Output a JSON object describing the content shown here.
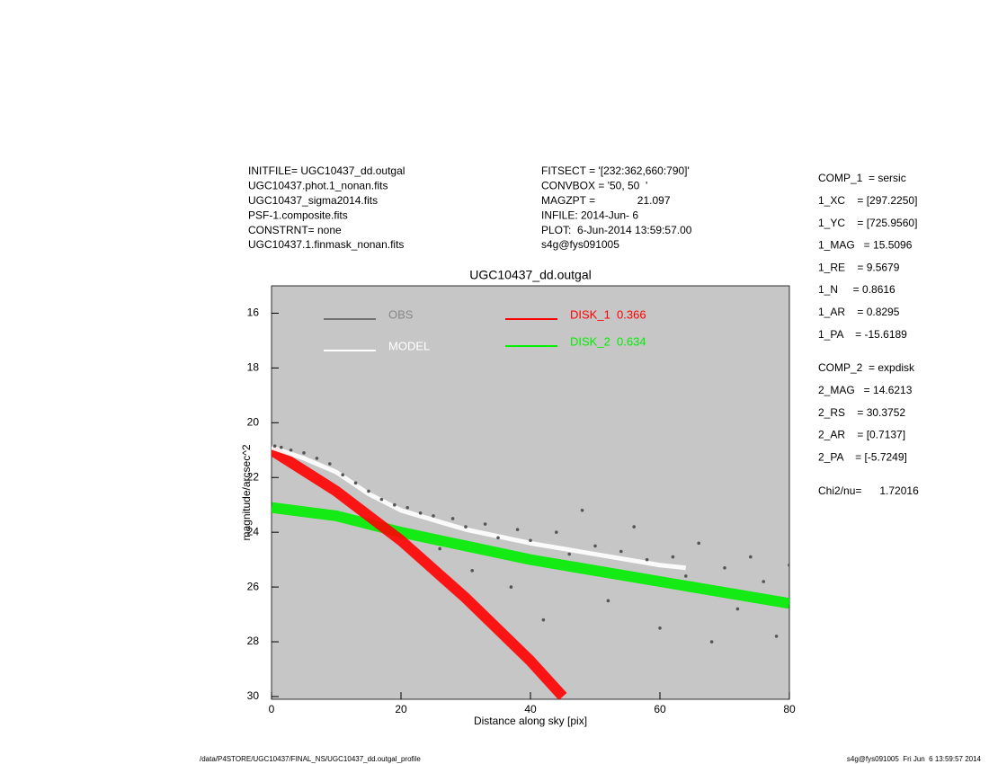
{
  "chart_data": {
    "type": "scatter",
    "title": "UGC10437_dd.outgal",
    "x_label": "Distance along sky [pix]",
    "y_label": "magnitude/arcsec^2",
    "xlim": [
      0,
      80
    ],
    "xticks": [
      0,
      20,
      40,
      60,
      80
    ],
    "ylim": [
      15,
      30.1
    ],
    "yticks": [
      16,
      18,
      20,
      22,
      24,
      26,
      28,
      30
    ],
    "y_inverted": true,
    "background": "#c6c6c6",
    "series": [
      {
        "name": "OBS",
        "color": "#555555",
        "style": "points",
        "x": [
          0.5,
          1.5,
          3,
          5,
          7,
          9,
          11,
          13,
          15,
          17,
          19,
          21,
          23,
          25,
          26,
          28,
          30,
          31,
          33,
          35,
          37,
          38,
          40,
          42,
          44,
          46,
          48,
          50,
          52,
          54,
          56,
          58,
          60,
          62,
          64,
          66,
          68,
          70,
          72,
          74,
          76,
          78,
          80
        ],
        "values": [
          20.85,
          20.9,
          21.0,
          21.1,
          21.3,
          21.5,
          21.9,
          22.2,
          22.5,
          22.8,
          23.0,
          23.1,
          23.3,
          23.4,
          24.6,
          23.5,
          23.8,
          25.4,
          23.7,
          24.2,
          26.0,
          23.9,
          24.3,
          27.2,
          24.0,
          24.8,
          23.2,
          24.5,
          26.5,
          24.7,
          23.8,
          25.0,
          27.5,
          24.9,
          25.6,
          24.4,
          28.0,
          25.3,
          26.8,
          24.9,
          25.8,
          27.8,
          25.2
        ]
      },
      {
        "name": "MODEL",
        "color": "#ffffff",
        "style": "line",
        "x": [
          0,
          5,
          10,
          15,
          20,
          30,
          40,
          50,
          60,
          64
        ],
        "values": [
          20.9,
          21.3,
          21.8,
          22.6,
          23.2,
          23.9,
          24.4,
          24.8,
          25.2,
          25.3
        ]
      },
      {
        "name": "DISK_1  0.366",
        "color": "#ff0000",
        "style": "band",
        "x": [
          0,
          10,
          20,
          30,
          40,
          45
        ],
        "values": [
          21.0,
          22.5,
          24.3,
          26.4,
          28.7,
          30.0
        ]
      },
      {
        "name": "DISK_2  0.634",
        "color": "#00ee00",
        "style": "band",
        "x": [
          0,
          10,
          20,
          30,
          40,
          50,
          60,
          70,
          80
        ],
        "values": [
          23.1,
          23.4,
          24.0,
          24.5,
          25.0,
          25.4,
          25.8,
          26.2,
          26.6
        ]
      }
    ]
  },
  "header": {
    "left": [
      "INITFILE= UGC10437_dd.outgal",
      "UGC10437.phot.1_nonan.fits",
      "UGC10437_sigma2014.fits",
      "PSF-1.composite.fits",
      "CONSTRNT= none",
      "UGC10437.1.finmask_nonan.fits"
    ],
    "right": [
      "FITSECT = '[232:362,660:790]'",
      "CONVBOX = '50, 50  '",
      "MAGZPT =              21.097",
      "INFILE: 2014-Jun- 6",
      "PLOT:  6-Jun-2014 13:59:57.00",
      "s4g@fys091005"
    ]
  },
  "components": {
    "comp1": [
      "COMP_1  = sersic",
      "1_XC    = [297.2250]",
      "1_YC    = [725.9560]",
      "1_MAG   = 15.5096",
      "1_RE    = 9.5679",
      "1_N     = 0.8616",
      "1_AR    = 0.8295",
      "1_PA    = -15.6189"
    ],
    "comp2": [
      "COMP_2  = expdisk",
      "2_MAG   = 14.6213",
      "2_RS    = 30.3752",
      "2_AR    = [0.7137]",
      "2_PA    = [-5.7249]"
    ],
    "chi": "Chi2/nu=      1.72016"
  },
  "footer": {
    "left": "/data/P4STORE/UGC10437/FINAL_NS/UGC10437_dd.outgal_profile",
    "right": "s4g@fys091005  Fri Jun  6 13:59:57 2014"
  }
}
